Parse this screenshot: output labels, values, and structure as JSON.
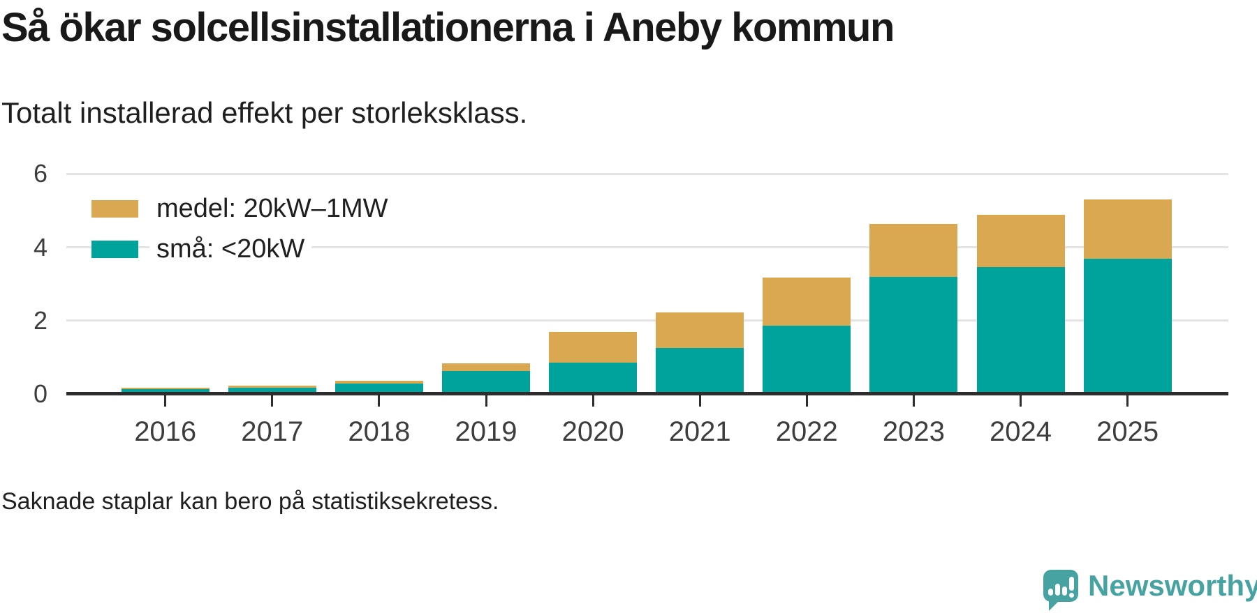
{
  "header": {
    "title": "Så ökar solcellsinstallationerna i Aneby kommun",
    "subtitle": "Totalt installerad effekt per storleksklass."
  },
  "chart_data": {
    "type": "bar",
    "stacked": true,
    "title": "Så ökar solcellsinstallationerna i Aneby kommun",
    "subtitle": "Totalt installerad effekt per storleksklass.",
    "categories": [
      "2016",
      "2017",
      "2018",
      "2019",
      "2020",
      "2021",
      "2022",
      "2023",
      "2024",
      "2025"
    ],
    "series": [
      {
        "name": "medel: 20kW–1MW",
        "color": "#d9a851",
        "values": [
          0.04,
          0.05,
          0.09,
          0.2,
          0.84,
          0.96,
          1.3,
          1.44,
          1.43,
          1.62
        ]
      },
      {
        "name": "små: <20kW",
        "color": "#00a39b",
        "values": [
          0.13,
          0.18,
          0.28,
          0.63,
          0.86,
          1.26,
          1.87,
          3.19,
          3.46,
          3.68
        ]
      }
    ],
    "stack_order_bottom_to_top": [
      "små: <20kW",
      "medel: 20kW–1MW"
    ],
    "totals": [
      0.17,
      0.23,
      0.37,
      0.83,
      1.7,
      2.22,
      3.17,
      4.63,
      4.89,
      5.3
    ],
    "ylim": [
      0,
      7
    ],
    "yticks": [
      0,
      2,
      4,
      6
    ],
    "xlabel": "",
    "ylabel": "",
    "grid": "horizontal",
    "grid_color": "#e4e4e4",
    "axis_color": "#2d2d2d",
    "legend_position": "top-left"
  },
  "footer": {
    "note": "Saknade staplar kan bero på statistiksekretess."
  },
  "branding": {
    "wordmark": "Newsworthy",
    "color": "#47a3a1",
    "icon": "newsworthy-speech-bubble-bar-chart-icon"
  }
}
